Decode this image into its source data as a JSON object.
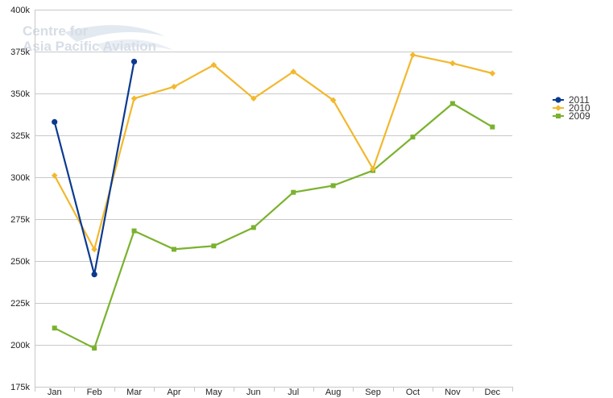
{
  "watermark": {
    "line1": "Centre for",
    "line2": "Asia Pacific Aviation"
  },
  "chart_data": {
    "type": "line",
    "title": "",
    "xlabel": "",
    "ylabel": "",
    "categories": [
      "Jan",
      "Feb",
      "Mar",
      "Apr",
      "May",
      "Jun",
      "Jul",
      "Aug",
      "Sep",
      "Oct",
      "Nov",
      "Dec"
    ],
    "ylim": [
      175000,
      400000
    ],
    "yticks": [
      175000,
      200000,
      225000,
      250000,
      275000,
      300000,
      325000,
      350000,
      375000,
      400000
    ],
    "ytick_labels": [
      "175k",
      "200k",
      "225k",
      "250k",
      "275k",
      "300k",
      "325k",
      "350k",
      "375k",
      "400k"
    ],
    "grid": true,
    "legend_position": "right",
    "series": [
      {
        "name": "2011",
        "color": "#0a3a8f",
        "marker": "circle",
        "values": [
          333000,
          242000,
          369000,
          null,
          null,
          null,
          null,
          null,
          null,
          null,
          null,
          null
        ]
      },
      {
        "name": "2010",
        "color": "#f2b82e",
        "marker": "diamond",
        "values": [
          301000,
          257000,
          347000,
          354000,
          367000,
          347000,
          363000,
          346000,
          305000,
          373000,
          368000,
          362000
        ]
      },
      {
        "name": "2009",
        "color": "#7ab22e",
        "marker": "square",
        "values": [
          210000,
          198000,
          268000,
          257000,
          259000,
          270000,
          291000,
          295000,
          304000,
          324000,
          344000,
          330000
        ]
      }
    ]
  }
}
